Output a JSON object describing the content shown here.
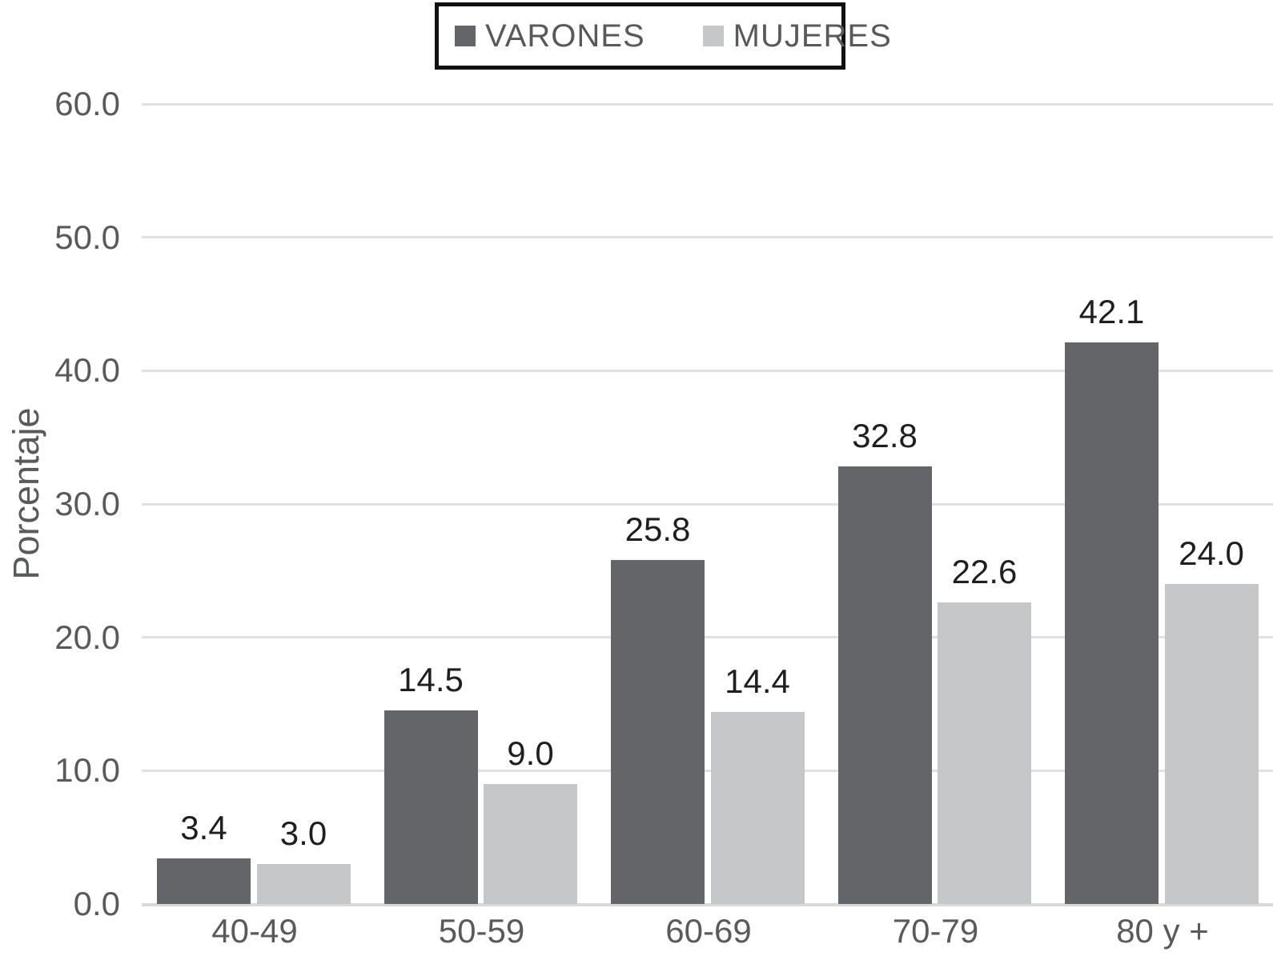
{
  "chart_data": {
    "type": "bar",
    "categories": [
      "40-49",
      "50-59",
      "60-69",
      "70-79",
      "80 y +"
    ],
    "series": [
      {
        "name": "VARONES",
        "color": "#636569",
        "values": [
          3.4,
          14.5,
          25.8,
          32.8,
          42.1
        ]
      },
      {
        "name": "MUJERES",
        "color": "#c6c7c9",
        "values": [
          3.0,
          9.0,
          14.4,
          22.6,
          24.0
        ]
      }
    ],
    "title": "",
    "xlabel": "",
    "ylabel": "Porcentaje",
    "ylim": [
      0,
      60
    ],
    "ytick_step": 10,
    "ytick_labels": [
      "0.0",
      "10.0",
      "20.0",
      "30.0",
      "40.0",
      "50.0",
      "60.0"
    ],
    "grid": true,
    "legend_position": "top-center",
    "value_labels": true,
    "colors": {
      "value_label": "#1f1f1f",
      "axis_text": "#595a5c",
      "gridline": "#e0e0e0",
      "legend_border": "#111111"
    }
  }
}
